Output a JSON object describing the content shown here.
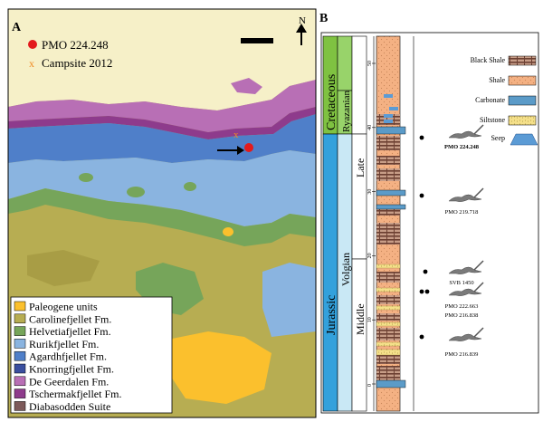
{
  "panel_a": {
    "label": "A",
    "north": "N",
    "markers": {
      "site": {
        "label": "PMO 224.248",
        "color": "#e31a1c"
      },
      "camp": {
        "label": "Campsite 2012",
        "color": "#f08a24"
      }
    },
    "legend": [
      {
        "label": "Paleogene units",
        "color": "#fbc02d"
      },
      {
        "label": "Carolinefjellet Fm.",
        "color": "#b7ad52"
      },
      {
        "label": "Helvetiafjellet Fm.",
        "color": "#76a55a"
      },
      {
        "label": "Rurikfjellet Fm.",
        "color": "#8ab4e0"
      },
      {
        "label": "Agardhfjellet Fm.",
        "color": "#4f7fc9"
      },
      {
        "label": "Knorringfjellet Fm.",
        "color": "#3a4f9f"
      },
      {
        "label": "De Geerdalen Fm.",
        "color": "#b86fb5"
      },
      {
        "label": "Tschermakfjellet Fm.",
        "color": "#8e3b8c"
      },
      {
        "label": "Diabasodden Suite",
        "color": "#7d5a5a"
      }
    ]
  },
  "panel_b": {
    "label": "B",
    "periods": [
      {
        "label": "Cretaceous",
        "color": "#7fc241"
      },
      {
        "label": "Jurassic",
        "color": "#33a1dc"
      }
    ],
    "stages": [
      {
        "label": "Ryazanian",
        "color": "#98d36a"
      },
      {
        "label": "Volgian",
        "color": "#c9e8f5"
      }
    ],
    "substages": [
      {
        "label": "Late"
      },
      {
        "label": "Middle"
      }
    ],
    "scale_ticks": [
      "0",
      "10",
      "20",
      "30",
      "40",
      "50"
    ],
    "legend": [
      {
        "label": "Black Shale",
        "color": "#8c5a4a"
      },
      {
        "label": "Shale",
        "color": "#f4b183"
      },
      {
        "label": "Carbonate",
        "color": "#5b9bc8"
      },
      {
        "label": "Siltstone",
        "color": "#f5e08a"
      },
      {
        "label": "Seep",
        "color": "#5b9bd5"
      }
    ],
    "specimens": [
      {
        "label": "PMO 224.248",
        "bold": true
      },
      {
        "label": "PMO 219.718",
        "bold": false
      },
      {
        "label": "SVB 1450",
        "bold": false
      },
      {
        "label": "PMO 222.663",
        "bold": false
      },
      {
        "label": "PMO 216.838",
        "bold": false
      },
      {
        "label": "PMO 216.839",
        "bold": false
      }
    ]
  }
}
